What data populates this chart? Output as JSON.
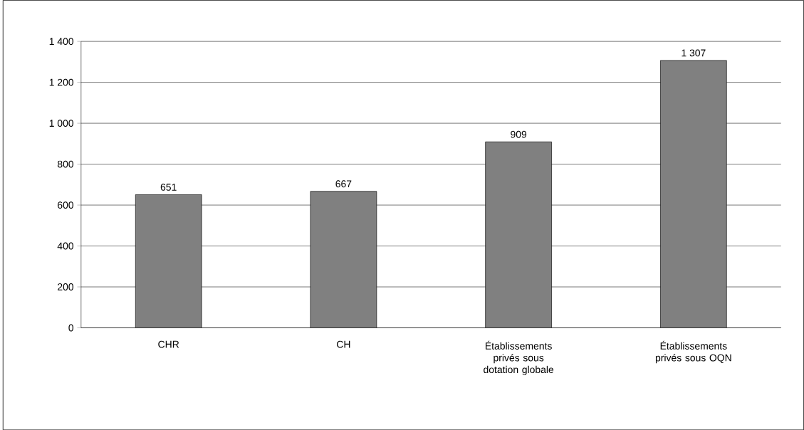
{
  "chart_data": {
    "type": "bar",
    "categories": [
      "CHR",
      "CH",
      "Établissements privés sous dotation globale",
      "Établissements privés sous OQN"
    ],
    "values": [
      651,
      667,
      909,
      1307
    ],
    "color": "#808080",
    "value_labels": [
      "651",
      "667",
      "909",
      "1 307"
    ],
    "ylim": [
      0,
      1400
    ],
    "yticks": [
      0,
      200,
      400,
      600,
      800,
      {
        "value": 1000,
        "label": "1 000"
      },
      {
        "value": 1200,
        "label": "1 200"
      },
      {
        "value": 1400,
        "label": "1 400"
      }
    ],
    "grid": "y"
  }
}
